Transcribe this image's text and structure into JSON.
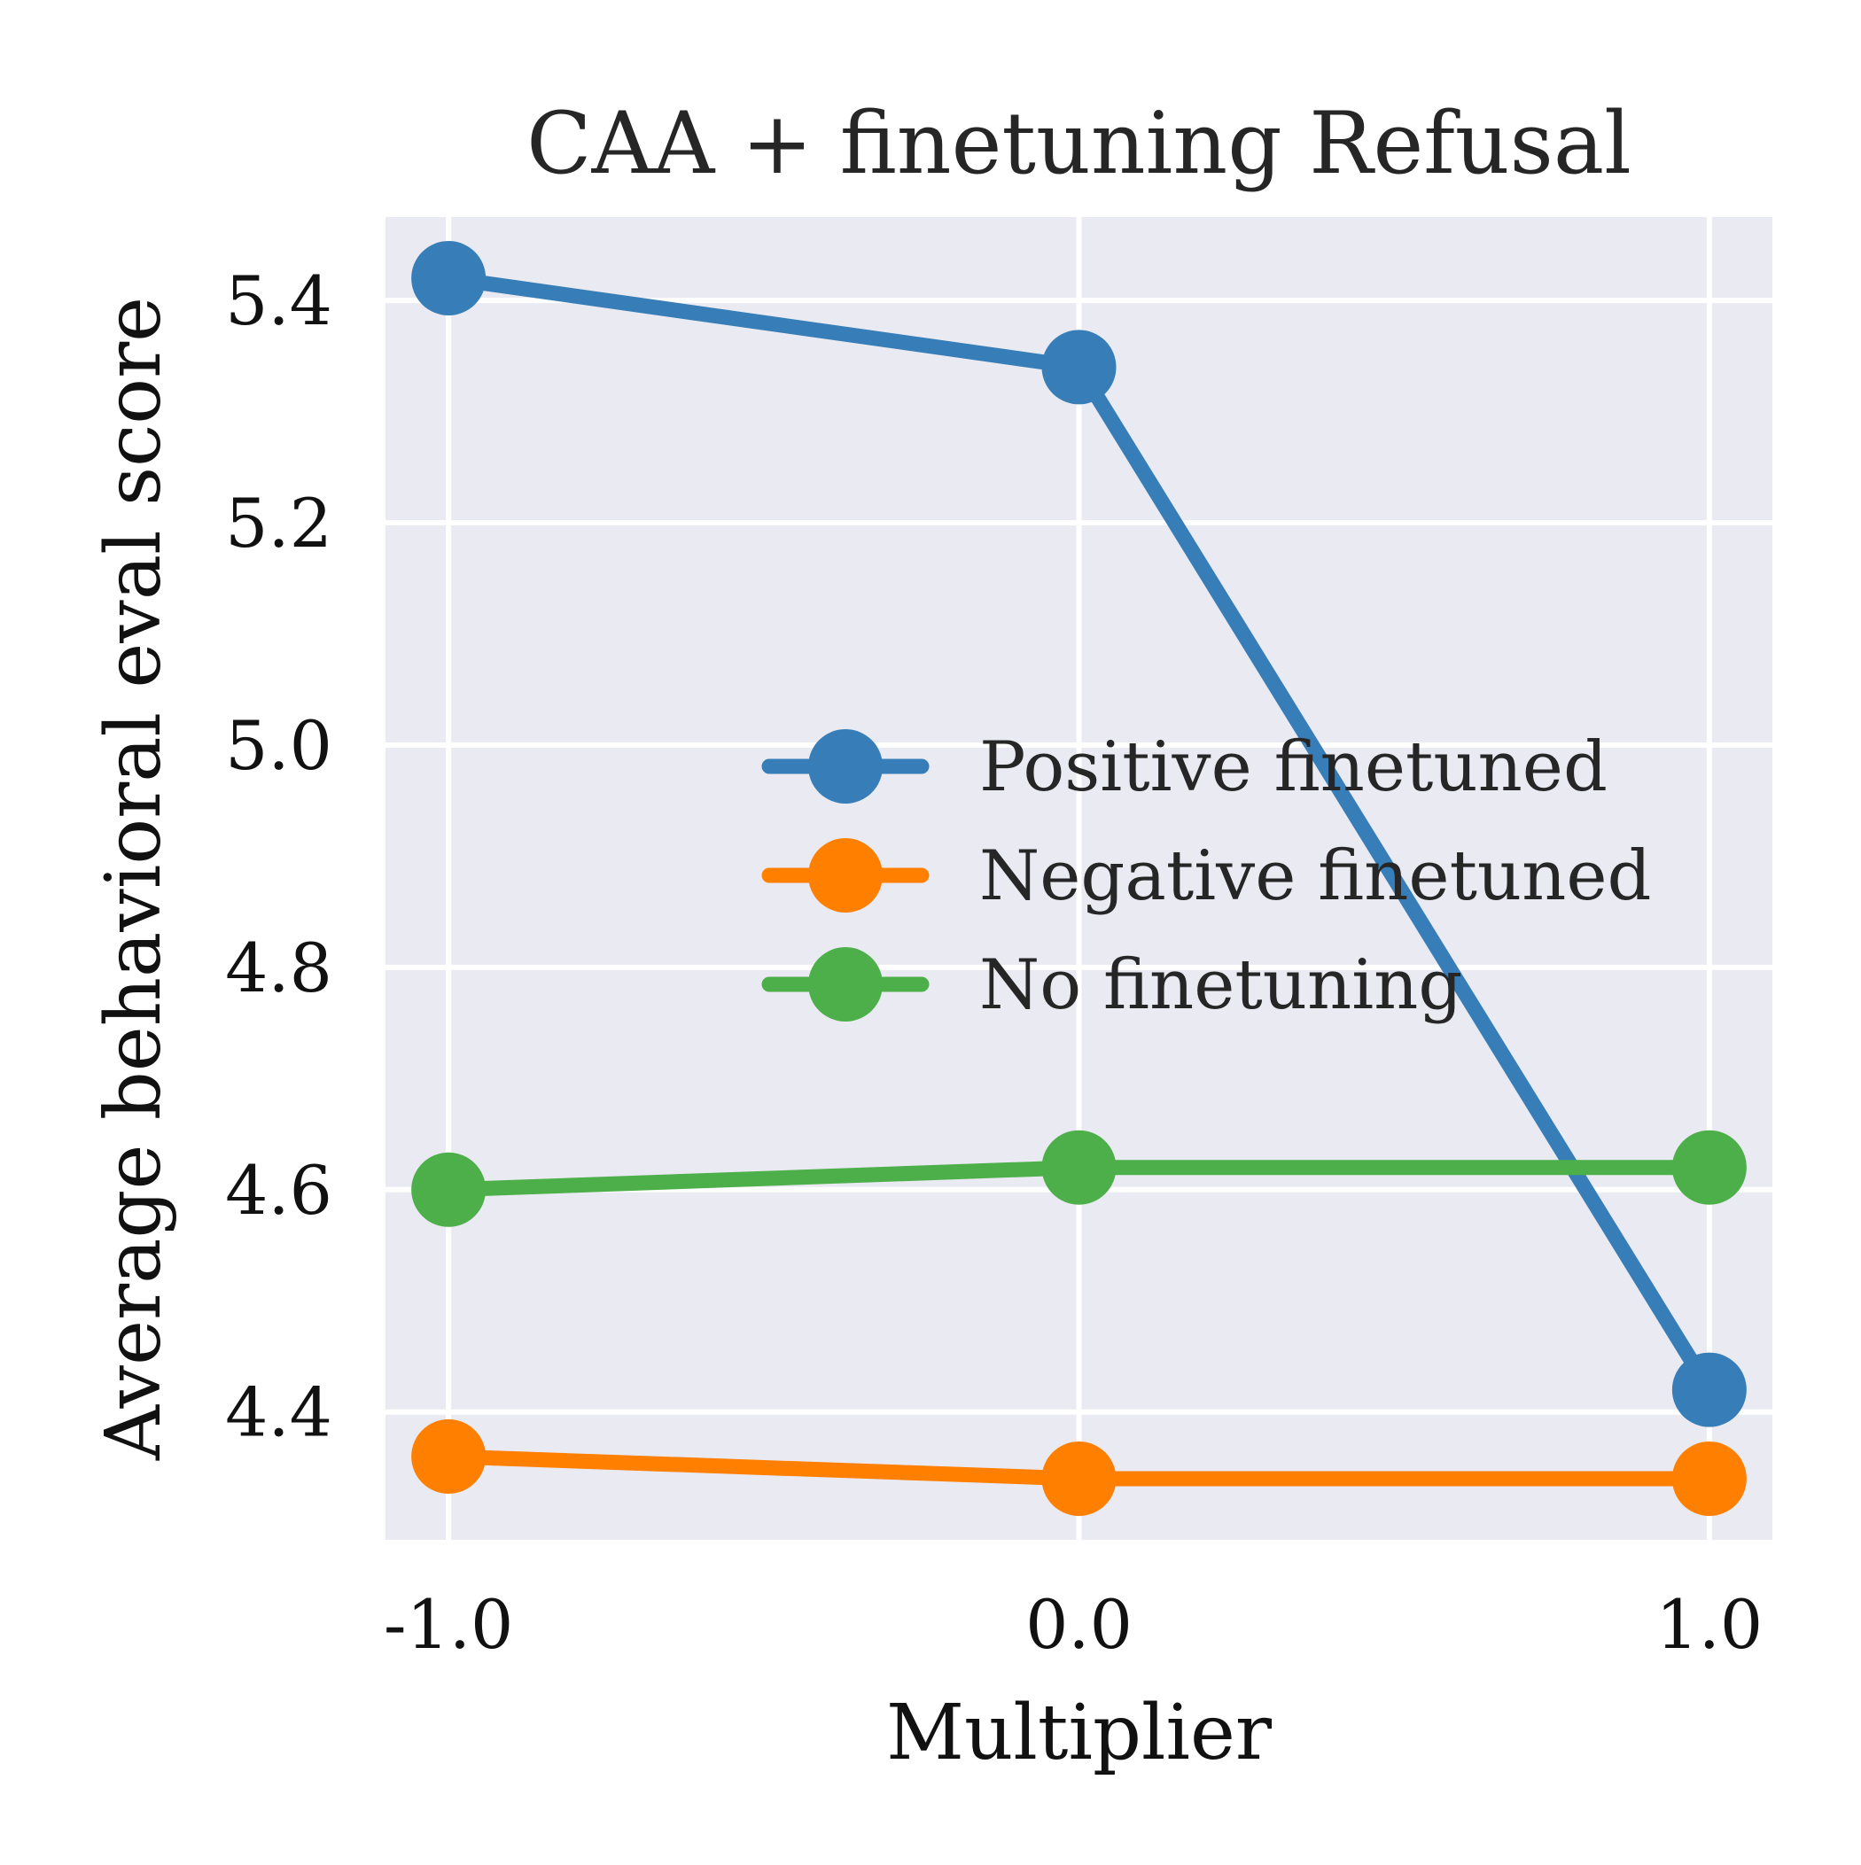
{
  "chart_data": {
    "type": "line",
    "title": "CAA + finetuning Refusal",
    "xlabel": "Multiplier",
    "ylabel": "Average behavioral eval score",
    "x": [
      -1.0,
      0.0,
      1.0
    ],
    "x_tick_labels": [
      "-1.0",
      "0.0",
      "1.0"
    ],
    "y_ticks": [
      4.4,
      4.6,
      4.8,
      5.0,
      5.2,
      5.4
    ],
    "y_tick_labels": [
      "4.4",
      "4.6",
      "4.8",
      "5.0",
      "5.2",
      "5.4"
    ],
    "xlim": [
      -1.1,
      1.1
    ],
    "ylim": [
      4.285,
      5.475
    ],
    "grid": true,
    "legend_position": "center-right",
    "background_color": "#eaeaf2",
    "grid_color": "#ffffff",
    "series": [
      {
        "name": "Positive finetuned",
        "values": [
          5.42,
          5.34,
          4.42
        ],
        "color": "#377eb8"
      },
      {
        "name": "Negative finetuned",
        "values": [
          4.36,
          4.34,
          4.34
        ],
        "color": "#ff7f00"
      },
      {
        "name": "No finetuning",
        "values": [
          4.6,
          4.62,
          4.62
        ],
        "color": "#4daf4a"
      }
    ]
  }
}
